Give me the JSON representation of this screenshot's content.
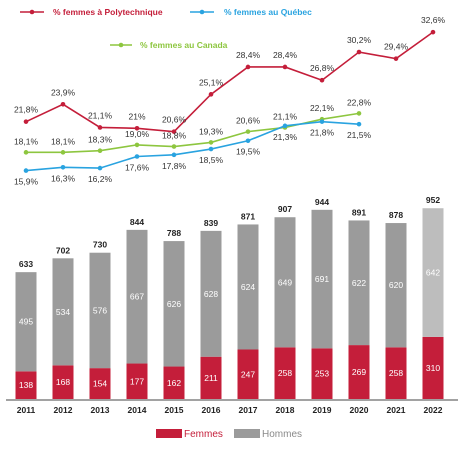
{
  "chart_data": {
    "type": "bar",
    "categories": [
      "2011",
      "2012",
      "2013",
      "2014",
      "2015",
      "2016",
      "2017",
      "2018",
      "2019",
      "2020",
      "2021",
      "2022"
    ],
    "bar_series": [
      {
        "name": "Femmes",
        "color": "#c41e3a",
        "values": [
          138,
          168,
          154,
          177,
          162,
          211,
          247,
          258,
          253,
          269,
          258,
          310
        ]
      },
      {
        "name": "Hommes",
        "color": "#9b9b9b",
        "last_color": "#bdbdbd",
        "values": [
          495,
          534,
          576,
          667,
          626,
          628,
          624,
          649,
          691,
          622,
          620,
          642
        ]
      }
    ],
    "totals": [
      633,
      702,
      730,
      844,
      788,
      839,
      871,
      907,
      944,
      891,
      878,
      952
    ],
    "line_series": [
      {
        "name": "% femmes à Polytechnique",
        "color": "#c41e3a",
        "values": [
          21.8,
          23.9,
          21.1,
          21.0,
          20.6,
          25.1,
          28.4,
          28.4,
          26.8,
          30.2,
          29.4,
          32.6
        ],
        "labels": [
          "21,8%",
          "23,9%",
          "21,1%",
          "21%",
          "20,6%",
          "25,1%",
          "28,4%",
          "28,4%",
          "26,8%",
          "30,2%",
          "29,4%",
          "32,6%"
        ]
      },
      {
        "name": "% femmes au Canada",
        "color": "#8dc63f",
        "values": [
          18.1,
          18.1,
          18.3,
          19.0,
          18.8,
          19.3,
          20.6,
          21.1,
          22.1,
          22.8,
          null,
          null
        ],
        "labels": [
          "18,1%",
          "18,1%",
          "18,3%",
          "19,0%",
          "18,8%",
          "19,3%",
          "20,6%",
          "21,1%",
          "22,1%",
          "22,8%",
          "",
          ""
        ]
      },
      {
        "name": "% femmes au Québec",
        "color": "#29a3e0",
        "values": [
          15.9,
          16.3,
          16.2,
          17.6,
          17.8,
          18.5,
          19.5,
          21.3,
          21.8,
          21.5,
          null,
          null
        ],
        "labels": [
          "15,9%",
          "16,3%",
          "16,2%",
          "17,6%",
          "17,8%",
          "18,5%",
          "19,5%",
          "21,3%",
          "21,8%",
          "21,5%",
          "",
          ""
        ]
      }
    ],
    "legend_bottom": [
      "Femmes",
      "Hommes"
    ]
  }
}
